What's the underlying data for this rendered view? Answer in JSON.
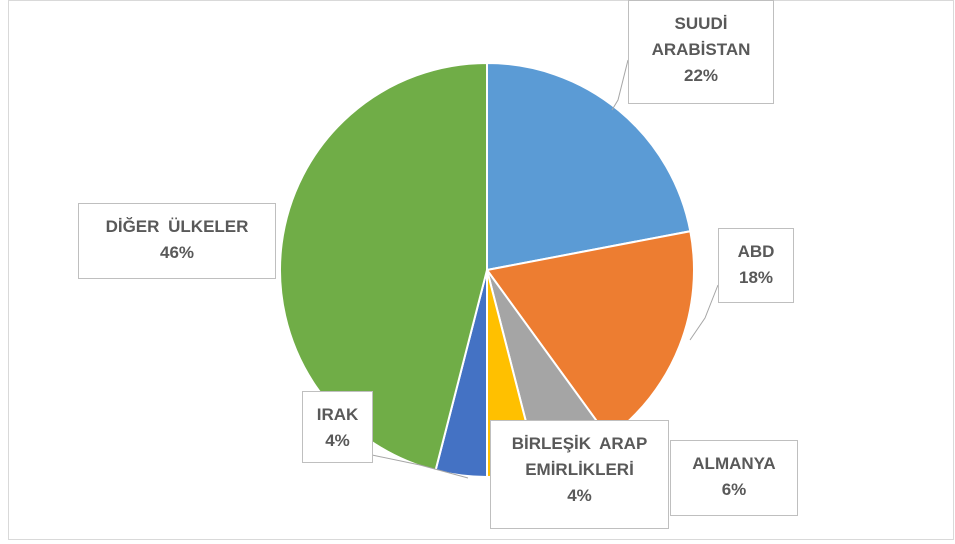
{
  "chart_data": {
    "type": "pie",
    "categories": [
      "SUUDİ ARABİSTAN",
      "ABD",
      "ALMANYA",
      "BİRLEŞİK ARAP EMİRLİKLERİ",
      "IRAK",
      "DİĞER ÜLKELER"
    ],
    "values": [
      22,
      18,
      6,
      4,
      4,
      46
    ],
    "value_labels": [
      "22%",
      "18%",
      "6%",
      "4%",
      "4%",
      "46%"
    ],
    "colors": [
      "#5b9bd5",
      "#ed7d31",
      "#a5a5a5",
      "#ffc000",
      "#4472c4",
      "#70ad47"
    ]
  }
}
